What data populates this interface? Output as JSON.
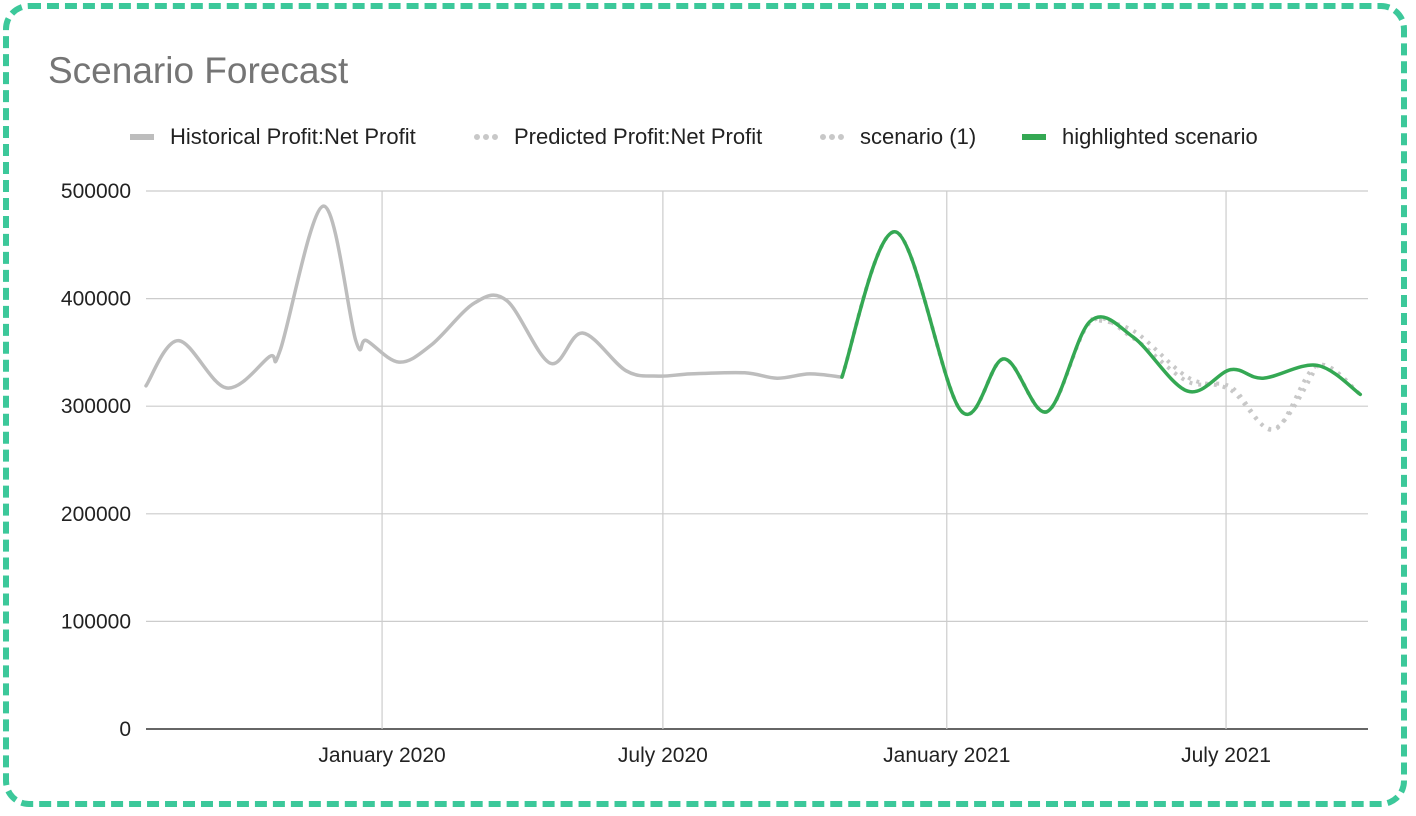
{
  "title": "Scenario Forecast",
  "colors": {
    "border": "#3cc89a",
    "historical": "#bdbdbd",
    "predicted": "#c8c8c8",
    "scenario": "#c8c8c8",
    "highlight": "#34a853",
    "grid": "#cccccc"
  },
  "chart_data": {
    "type": "line",
    "title": "Scenario Forecast",
    "xlabel": "",
    "ylabel": "",
    "ylim": [
      0,
      500000
    ],
    "xlim": [
      "2019-08-01",
      "2021-10-01"
    ],
    "yticks": [
      "500000",
      "400000",
      "300000",
      "200000",
      "100000",
      "0"
    ],
    "xticks": [
      {
        "date": "2020-01-01",
        "label": "January 2020"
      },
      {
        "date": "2020-07-01",
        "label": "July 2020"
      },
      {
        "date": "2021-01-01",
        "label": "January 2021"
      },
      {
        "date": "2021-07-01",
        "label": "July 2021"
      }
    ],
    "grid": true,
    "legend_position": "top",
    "series": [
      {
        "name": "Historical Profit:Net Profit",
        "style": "solid",
        "color": "#bdbdbd",
        "points": [
          [
            "2019-08-01",
            319000
          ],
          [
            "2019-08-22",
            361000
          ],
          [
            "2019-09-22",
            317000
          ],
          [
            "2019-10-20",
            346000
          ],
          [
            "2019-10-27",
            352000
          ],
          [
            "2019-11-24",
            486000
          ],
          [
            "2019-12-15",
            361000
          ],
          [
            "2019-12-22",
            361000
          ],
          [
            "2020-01-12",
            341000
          ],
          [
            "2020-02-02",
            357000
          ],
          [
            "2020-03-01",
            396000
          ],
          [
            "2020-03-22",
            398000
          ],
          [
            "2020-04-19",
            340000
          ],
          [
            "2020-05-10",
            368000
          ],
          [
            "2020-06-07",
            333000
          ],
          [
            "2020-06-28",
            328000
          ],
          [
            "2020-07-19",
            330000
          ],
          [
            "2020-08-23",
            331000
          ],
          [
            "2020-09-13",
            326000
          ],
          [
            "2020-10-04",
            330000
          ],
          [
            "2020-10-25",
            327000
          ]
        ]
      },
      {
        "name": "Predicted Profit:Net Profit",
        "style": "dotted",
        "color": "#c8c8c8",
        "points": [
          [
            "2020-10-25",
            327000
          ],
          [
            "2020-11-29",
            462000
          ],
          [
            "2021-01-10",
            296000
          ],
          [
            "2021-02-07",
            344000
          ],
          [
            "2021-03-07",
            295000
          ],
          [
            "2021-04-04",
            378000
          ],
          [
            "2021-05-02",
            363000
          ],
          [
            "2021-06-06",
            323000
          ],
          [
            "2021-07-04",
            318000
          ],
          [
            "2021-08-01",
            278000
          ],
          [
            "2021-08-29",
            338000
          ],
          [
            "2021-09-26",
            311000
          ]
        ]
      },
      {
        "name": "scenario (1)",
        "style": "dotted",
        "color": "#c8c8c8",
        "points": [
          [
            "2021-04-04",
            381000
          ],
          [
            "2021-05-02",
            370000
          ],
          [
            "2021-06-06",
            327000
          ],
          [
            "2021-07-04",
            315000
          ],
          [
            "2021-08-01",
            279000
          ],
          [
            "2021-08-29",
            337000
          ]
        ]
      },
      {
        "name": "highlighted scenario",
        "style": "solid",
        "color": "#34a853",
        "points": [
          [
            "2020-10-25",
            327000
          ],
          [
            "2020-11-29",
            462000
          ],
          [
            "2021-01-10",
            296000
          ],
          [
            "2021-02-07",
            344000
          ],
          [
            "2021-03-07",
            295000
          ],
          [
            "2021-04-04",
            379000
          ],
          [
            "2021-05-02",
            364000
          ],
          [
            "2021-06-06",
            314000
          ],
          [
            "2021-07-04",
            334000
          ],
          [
            "2021-07-25",
            326000
          ],
          [
            "2021-08-29",
            338000
          ],
          [
            "2021-09-26",
            311000
          ]
        ]
      }
    ]
  }
}
